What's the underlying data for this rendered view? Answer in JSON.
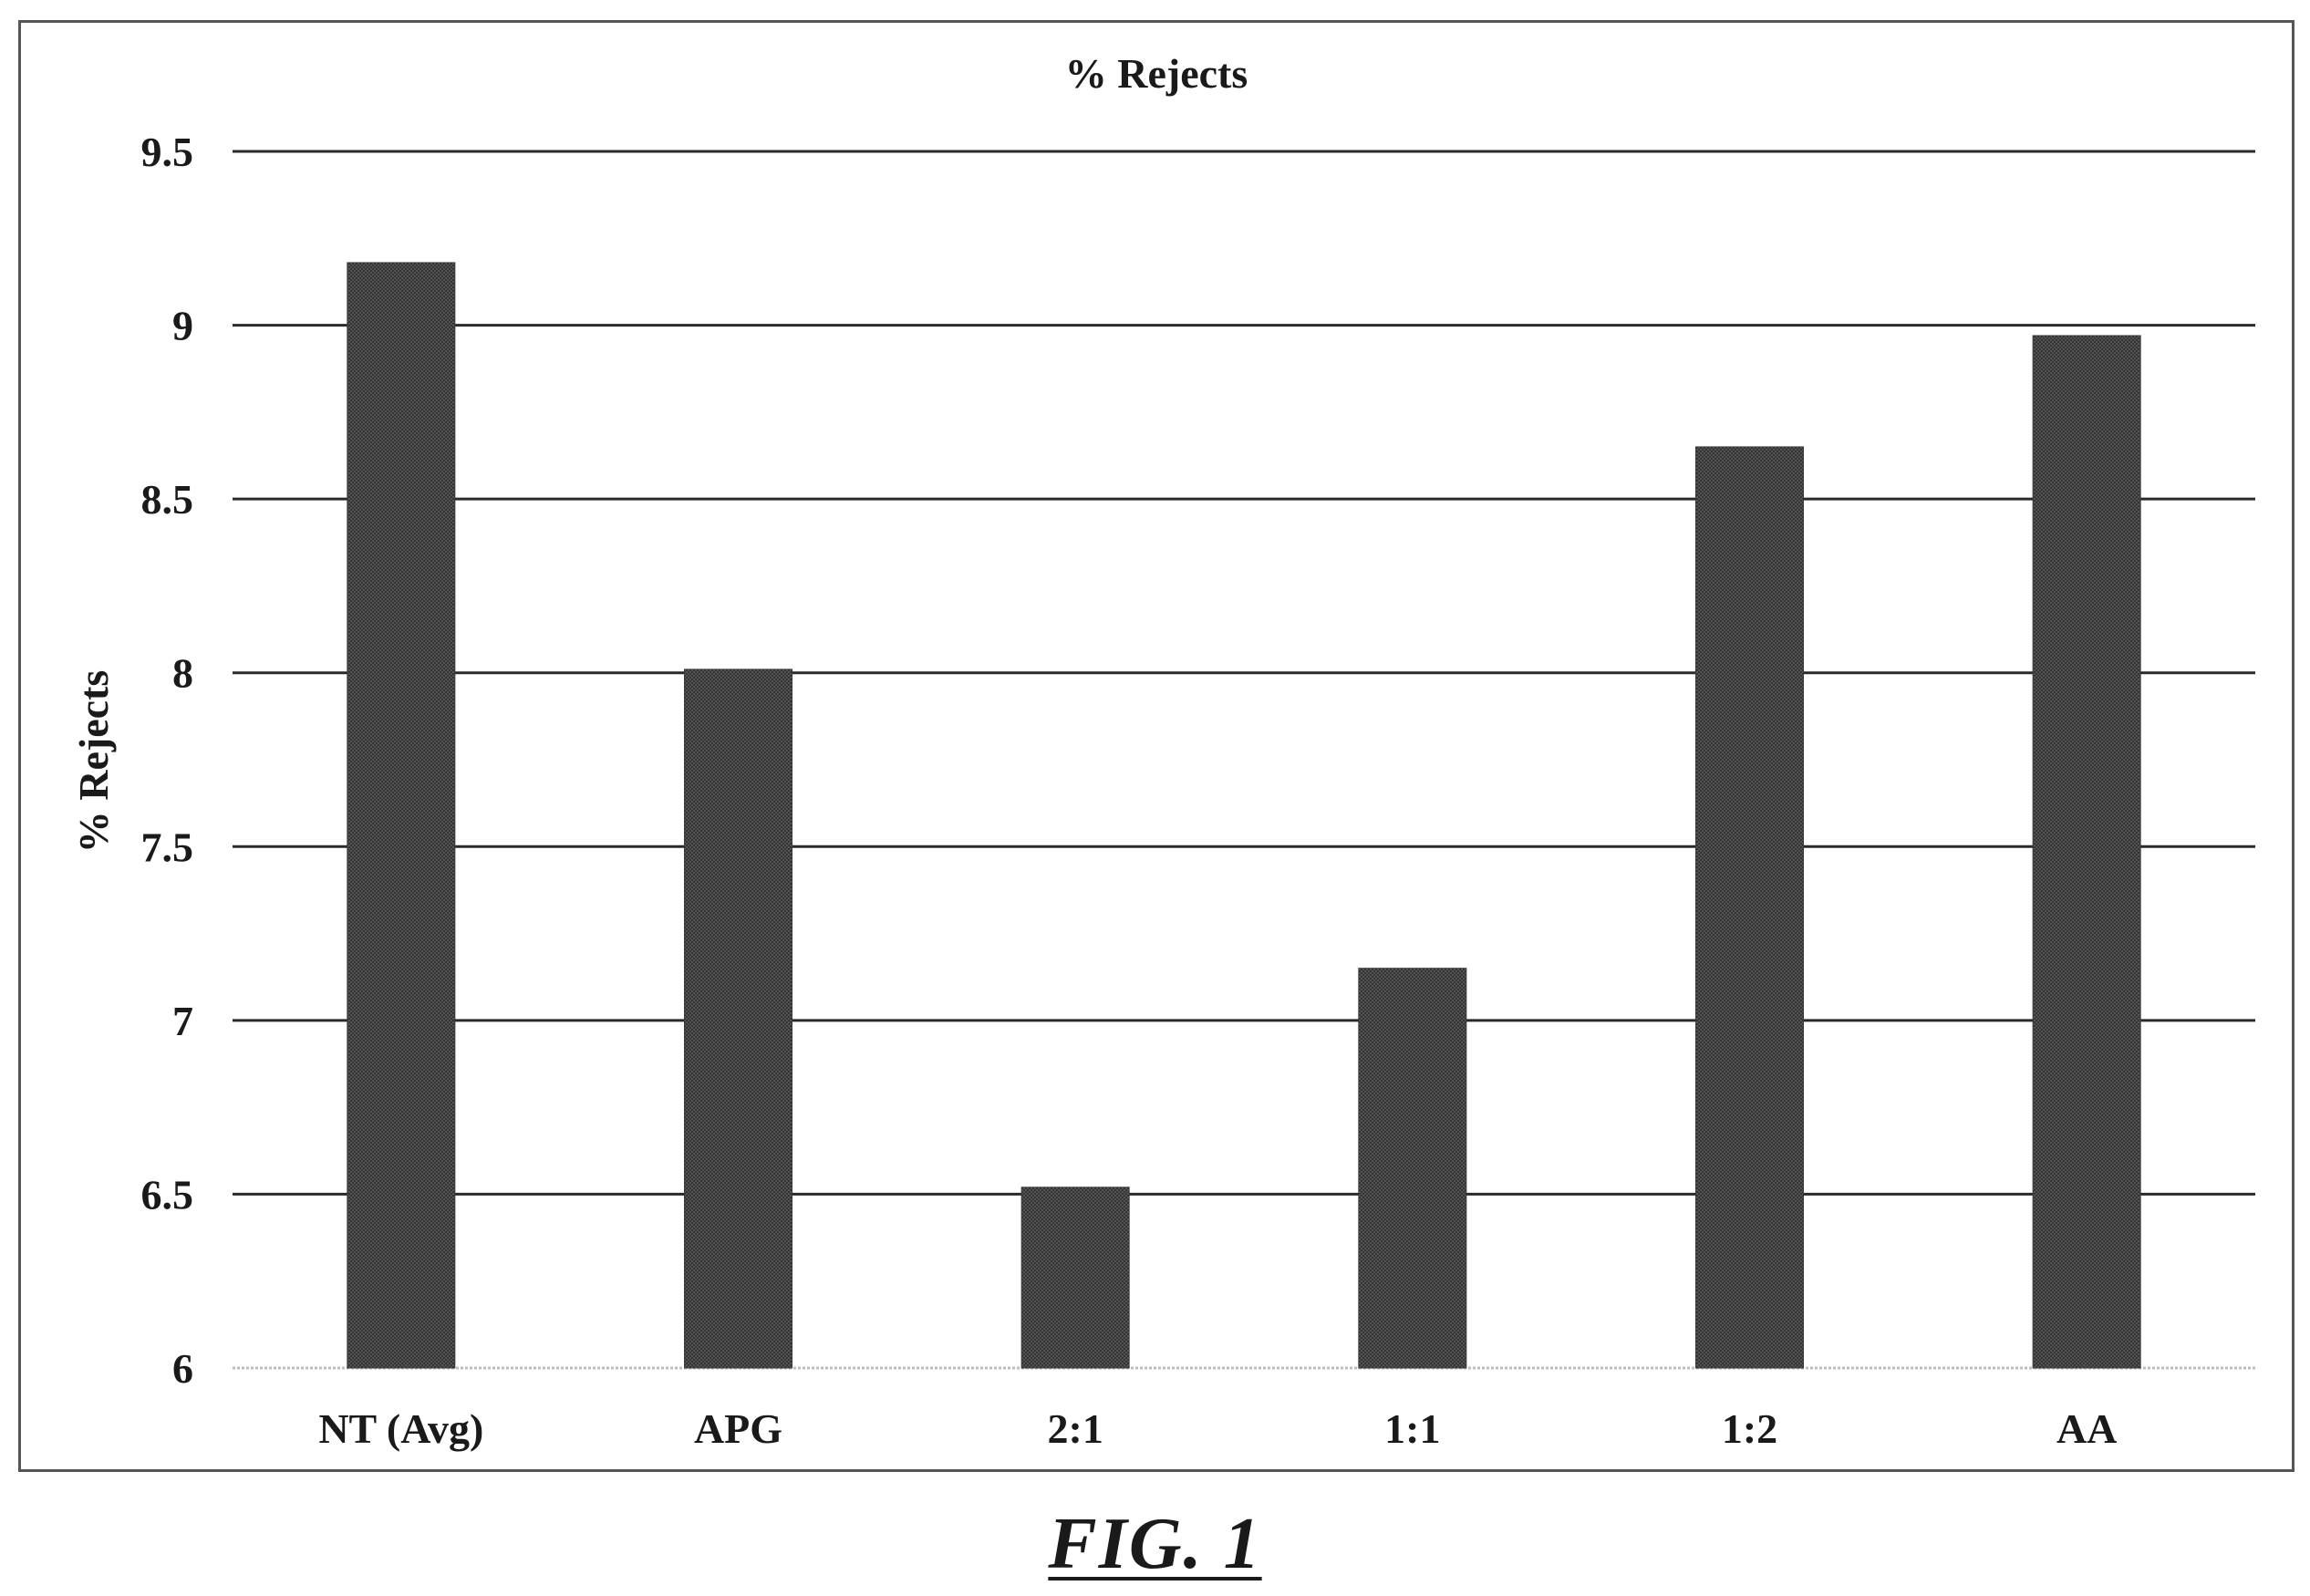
{
  "chart_data": {
    "type": "bar",
    "title": "% Rejects",
    "ylabel": "% Rejects",
    "xlabel": "",
    "categories": [
      "NT (Avg)",
      "APG",
      "2:1",
      "1:1",
      "1:2",
      "AA"
    ],
    "values": [
      9.18,
      8.01,
      6.52,
      7.15,
      8.65,
      8.97
    ],
    "ylim": [
      6,
      9.5
    ],
    "yticks": [
      "6",
      "6.5",
      "7",
      "7.5",
      "8",
      "8.5",
      "9",
      "9.5"
    ],
    "grid": true,
    "legend": "none",
    "bar_color": "#3a3a3a",
    "grid_color": "#2a2a2a"
  },
  "caption": "FIG. 1"
}
